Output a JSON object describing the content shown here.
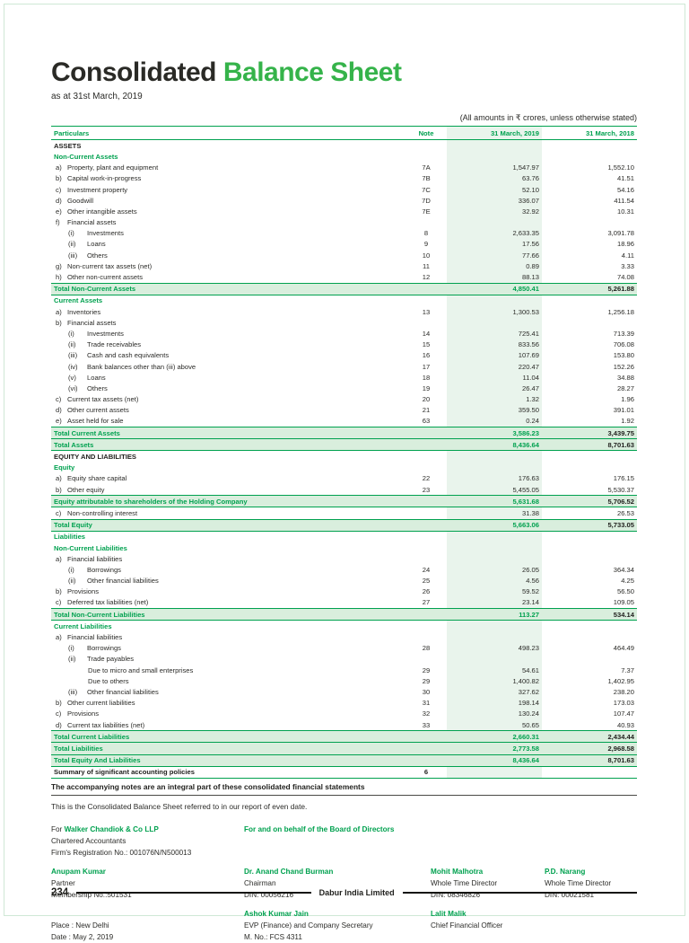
{
  "colors": {
    "accent_green": "#00a14f",
    "title_green": "#35b34a",
    "light_green": "#e9f4ec",
    "total_fill": "#d9eedd",
    "frame_green": "#cfe8d6"
  },
  "page": {
    "title_black": "Consolidated",
    "title_green": "Balance Sheet",
    "subtitle": "as at 31st March, 2019",
    "amounts_note": "(All amounts in ₹ crores, unless otherwise stated)"
  },
  "table": {
    "headers": [
      "Particulars",
      "Note",
      "31 March, 2019",
      "31 March, 2018"
    ],
    "rows": [
      {
        "p": "",
        "t": "ASSETS",
        "n": "",
        "a": "",
        "b": "",
        "s": "h1",
        "i": 0
      },
      {
        "p": "",
        "t": "Non-Current Assets",
        "n": "",
        "a": "",
        "b": "",
        "s": "h2",
        "i": 0
      },
      {
        "p": "a)",
        "t": "Property, plant and equipment",
        "n": "7A",
        "a": "1,547.97",
        "b": "1,552.10",
        "s": "item",
        "i": 1
      },
      {
        "p": "b)",
        "t": "Capital work-in-progress",
        "n": "7B",
        "a": "63.76",
        "b": "41.51",
        "s": "item",
        "i": 1
      },
      {
        "p": "c)",
        "t": "Investment property",
        "n": "7C",
        "a": "52.10",
        "b": "54.16",
        "s": "item",
        "i": 1
      },
      {
        "p": "d)",
        "t": "Goodwill",
        "n": "7D",
        "a": "336.07",
        "b": "411.54",
        "s": "item",
        "i": 1
      },
      {
        "p": "e)",
        "t": "Other intangible assets",
        "n": "7E",
        "a": "32.92",
        "b": "10.31",
        "s": "item",
        "i": 1
      },
      {
        "p": "f)",
        "t": "Financial assets",
        "n": "",
        "a": "",
        "b": "",
        "s": "item",
        "i": 1
      },
      {
        "p": "(i)",
        "t": "Investments",
        "n": "8",
        "a": "2,633.35",
        "b": "3,091.78",
        "s": "item",
        "i": 2
      },
      {
        "p": "(ii)",
        "t": "Loans",
        "n": "9",
        "a": "17.56",
        "b": "18.96",
        "s": "item",
        "i": 2
      },
      {
        "p": "(iii)",
        "t": "Others",
        "n": "10",
        "a": "77.66",
        "b": "4.11",
        "s": "item",
        "i": 2
      },
      {
        "p": "g)",
        "t": "Non-current tax assets (net)",
        "n": "11",
        "a": "0.89",
        "b": "3.33",
        "s": "item",
        "i": 1
      },
      {
        "p": "h)",
        "t": "Other non-current assets",
        "n": "12",
        "a": "88.13",
        "b": "74.08",
        "s": "item",
        "i": 1
      },
      {
        "p": "",
        "t": "Total Non-Current Assets",
        "n": "",
        "a": "4,850.41",
        "b": "5,261.88",
        "s": "total",
        "i": 0
      },
      {
        "p": "",
        "t": "Current Assets",
        "n": "",
        "a": "",
        "b": "",
        "s": "h2",
        "i": 0
      },
      {
        "p": "a)",
        "t": "Inventories",
        "n": "13",
        "a": "1,300.53",
        "b": "1,256.18",
        "s": "item",
        "i": 1
      },
      {
        "p": "b)",
        "t": "Financial assets",
        "n": "",
        "a": "",
        "b": "",
        "s": "item",
        "i": 1
      },
      {
        "p": "(i)",
        "t": "Investments",
        "n": "14",
        "a": "725.41",
        "b": "713.39",
        "s": "item",
        "i": 2
      },
      {
        "p": "(ii)",
        "t": "Trade receivables",
        "n": "15",
        "a": "833.56",
        "b": "706.08",
        "s": "item",
        "i": 2
      },
      {
        "p": "(iii)",
        "t": "Cash and cash equivalents",
        "n": "16",
        "a": "107.69",
        "b": "153.80",
        "s": "item",
        "i": 2
      },
      {
        "p": "(iv)",
        "t": "Bank balances other than (iii) above",
        "n": "17",
        "a": "220.47",
        "b": "152.26",
        "s": "item",
        "i": 2
      },
      {
        "p": "(v)",
        "t": "Loans",
        "n": "18",
        "a": "11.04",
        "b": "34.88",
        "s": "item",
        "i": 2
      },
      {
        "p": "(vi)",
        "t": "Others",
        "n": "19",
        "a": "26.47",
        "b": "28.27",
        "s": "item",
        "i": 2
      },
      {
        "p": "c)",
        "t": "Current tax assets (net)",
        "n": "20",
        "a": "1.32",
        "b": "1.96",
        "s": "item",
        "i": 1
      },
      {
        "p": "d)",
        "t": "Other current assets",
        "n": "21",
        "a": "359.50",
        "b": "391.01",
        "s": "item",
        "i": 1
      },
      {
        "p": "e)",
        "t": "Asset held for sale",
        "n": "63",
        "a": "0.24",
        "b": "1.92",
        "s": "item",
        "i": 1
      },
      {
        "p": "",
        "t": "Total Current Assets",
        "n": "",
        "a": "3,586.23",
        "b": "3,439.75",
        "s": "total",
        "i": 0
      },
      {
        "p": "",
        "t": "Total Assets",
        "n": "",
        "a": "8,436.64",
        "b": "8,701.63",
        "s": "total",
        "i": 0
      },
      {
        "p": "",
        "t": "EQUITY AND LIABILITIES",
        "n": "",
        "a": "",
        "b": "",
        "s": "h1",
        "i": 0
      },
      {
        "p": "",
        "t": "Equity",
        "n": "",
        "a": "",
        "b": "",
        "s": "h2",
        "i": 0
      },
      {
        "p": "a)",
        "t": "Equity share capital",
        "n": "22",
        "a": "176.63",
        "b": "176.15",
        "s": "item",
        "i": 1
      },
      {
        "p": "b)",
        "t": "Other equity",
        "n": "23",
        "a": "5,455.05",
        "b": "5,530.37",
        "s": "item",
        "i": 1
      },
      {
        "p": "",
        "t": "Equity attributable to shareholders of the Holding Company",
        "n": "",
        "a": "5,631.68",
        "b": "5,706.52",
        "s": "total",
        "i": 0
      },
      {
        "p": "c)",
        "t": "Non-controlling interest",
        "n": "",
        "a": "31.38",
        "b": "26.53",
        "s": "item",
        "i": 1
      },
      {
        "p": "",
        "t": "Total Equity",
        "n": "",
        "a": "5,663.06",
        "b": "5,733.05",
        "s": "total",
        "i": 0
      },
      {
        "p": "",
        "t": "Liabilities",
        "n": "",
        "a": "",
        "b": "",
        "s": "h2",
        "i": 0
      },
      {
        "p": "",
        "t": "Non-Current Liabilities",
        "n": "",
        "a": "",
        "b": "",
        "s": "h2",
        "i": 0
      },
      {
        "p": "a)",
        "t": "Financial liabilities",
        "n": "",
        "a": "",
        "b": "",
        "s": "item",
        "i": 1
      },
      {
        "p": "(i)",
        "t": "Borrowings",
        "n": "24",
        "a": "26.05",
        "b": "364.34",
        "s": "item",
        "i": 2
      },
      {
        "p": "(ii)",
        "t": "Other financial liabilities",
        "n": "25",
        "a": "4.56",
        "b": "4.25",
        "s": "item",
        "i": 2
      },
      {
        "p": "b)",
        "t": "Provisions",
        "n": "26",
        "a": "59.52",
        "b": "56.50",
        "s": "item",
        "i": 1
      },
      {
        "p": "c)",
        "t": "Deferred tax liabilities (net)",
        "n": "27",
        "a": "23.14",
        "b": "109.05",
        "s": "item",
        "i": 1
      },
      {
        "p": "",
        "t": "Total Non-Current Liabilities",
        "n": "",
        "a": "113.27",
        "b": "534.14",
        "s": "total",
        "i": 0
      },
      {
        "p": "",
        "t": "Current Liabilities",
        "n": "",
        "a": "",
        "b": "",
        "s": "h2",
        "i": 0
      },
      {
        "p": "a)",
        "t": "Financial liabilities",
        "n": "",
        "a": "",
        "b": "",
        "s": "item",
        "i": 1
      },
      {
        "p": "(i)",
        "t": "Borrowings",
        "n": "28",
        "a": "498.23",
        "b": "464.49",
        "s": "item",
        "i": 2
      },
      {
        "p": "(ii)",
        "t": "Trade payables",
        "n": "",
        "a": "",
        "b": "",
        "s": "item",
        "i": 2
      },
      {
        "p": "",
        "t": "Due to micro and small enterprises",
        "n": "29",
        "a": "54.61",
        "b": "7.37",
        "s": "item",
        "i": 3
      },
      {
        "p": "",
        "t": "Due to others",
        "n": "29",
        "a": "1,400.82",
        "b": "1,402.95",
        "s": "item",
        "i": 3
      },
      {
        "p": "(iii)",
        "t": "Other financial liabilities",
        "n": "30",
        "a": "327.62",
        "b": "238.20",
        "s": "item",
        "i": 2
      },
      {
        "p": "b)",
        "t": "Other current liabilities",
        "n": "31",
        "a": "198.14",
        "b": "173.03",
        "s": "item",
        "i": 1
      },
      {
        "p": "c)",
        "t": "Provisions",
        "n": "32",
        "a": "130.24",
        "b": "107.47",
        "s": "item",
        "i": 1
      },
      {
        "p": "d)",
        "t": "Current tax liabilities (net)",
        "n": "33",
        "a": "50.65",
        "b": "40.93",
        "s": "item",
        "i": 1
      },
      {
        "p": "",
        "t": "Total Current Liabilities",
        "n": "",
        "a": "2,660.31",
        "b": "2,434.44",
        "s": "total",
        "i": 0
      },
      {
        "p": "",
        "t": "Total Liabilities",
        "n": "",
        "a": "2,773.58",
        "b": "2,968.58",
        "s": "total",
        "i": 0
      },
      {
        "p": "",
        "t": "Total Equity And Liabilities",
        "n": "",
        "a": "8,436.64",
        "b": "8,701.63",
        "s": "total",
        "i": 0
      },
      {
        "p": "",
        "t": "Summary of significant accounting policies",
        "n": "6",
        "a": "",
        "b": "",
        "s": "policy",
        "i": 0
      }
    ]
  },
  "notes": {
    "bold_line": "The accompanying notes are an integral part of these consolidated financial statements",
    "plain_line": "This is the Consolidated Balance Sheet referred to in our report of even date."
  },
  "signatories": {
    "for_prefix": "For ",
    "firm_name": "Walker Chandiok & Co LLP",
    "firm_role": "Chartered Accountants",
    "firm_reg": "Firm's Registration No.: 001076N/N500013",
    "board_heading": "For and on behalf of the Board of Directors",
    "partner": {
      "name": "Anupam Kumar",
      "role": "Partner",
      "id": "Membership No.:501531"
    },
    "chairman": {
      "name": "Dr. Anand Chand Burman",
      "role": "Chairman",
      "id": "DIN: 00056216"
    },
    "wtd1": {
      "name": "Mohit Malhotra",
      "role": "Whole Time Director",
      "id": "DIN: 08346826"
    },
    "wtd2": {
      "name": "P.D. Narang",
      "role": "Whole Time Director",
      "id": "DIN: 00021581"
    },
    "secretary": {
      "name": "Ashok Kumar Jain",
      "role": "EVP (Finance) and Company Secretary",
      "id": "M. No.: FCS 4311"
    },
    "cfo": {
      "name": "Lalit Malik",
      "role": "Chief Financial Officer"
    },
    "place": "Place : New Delhi",
    "date": "Date   : May 2, 2019"
  },
  "footer": {
    "page_number": "234",
    "company": "Dabur India Limited"
  }
}
